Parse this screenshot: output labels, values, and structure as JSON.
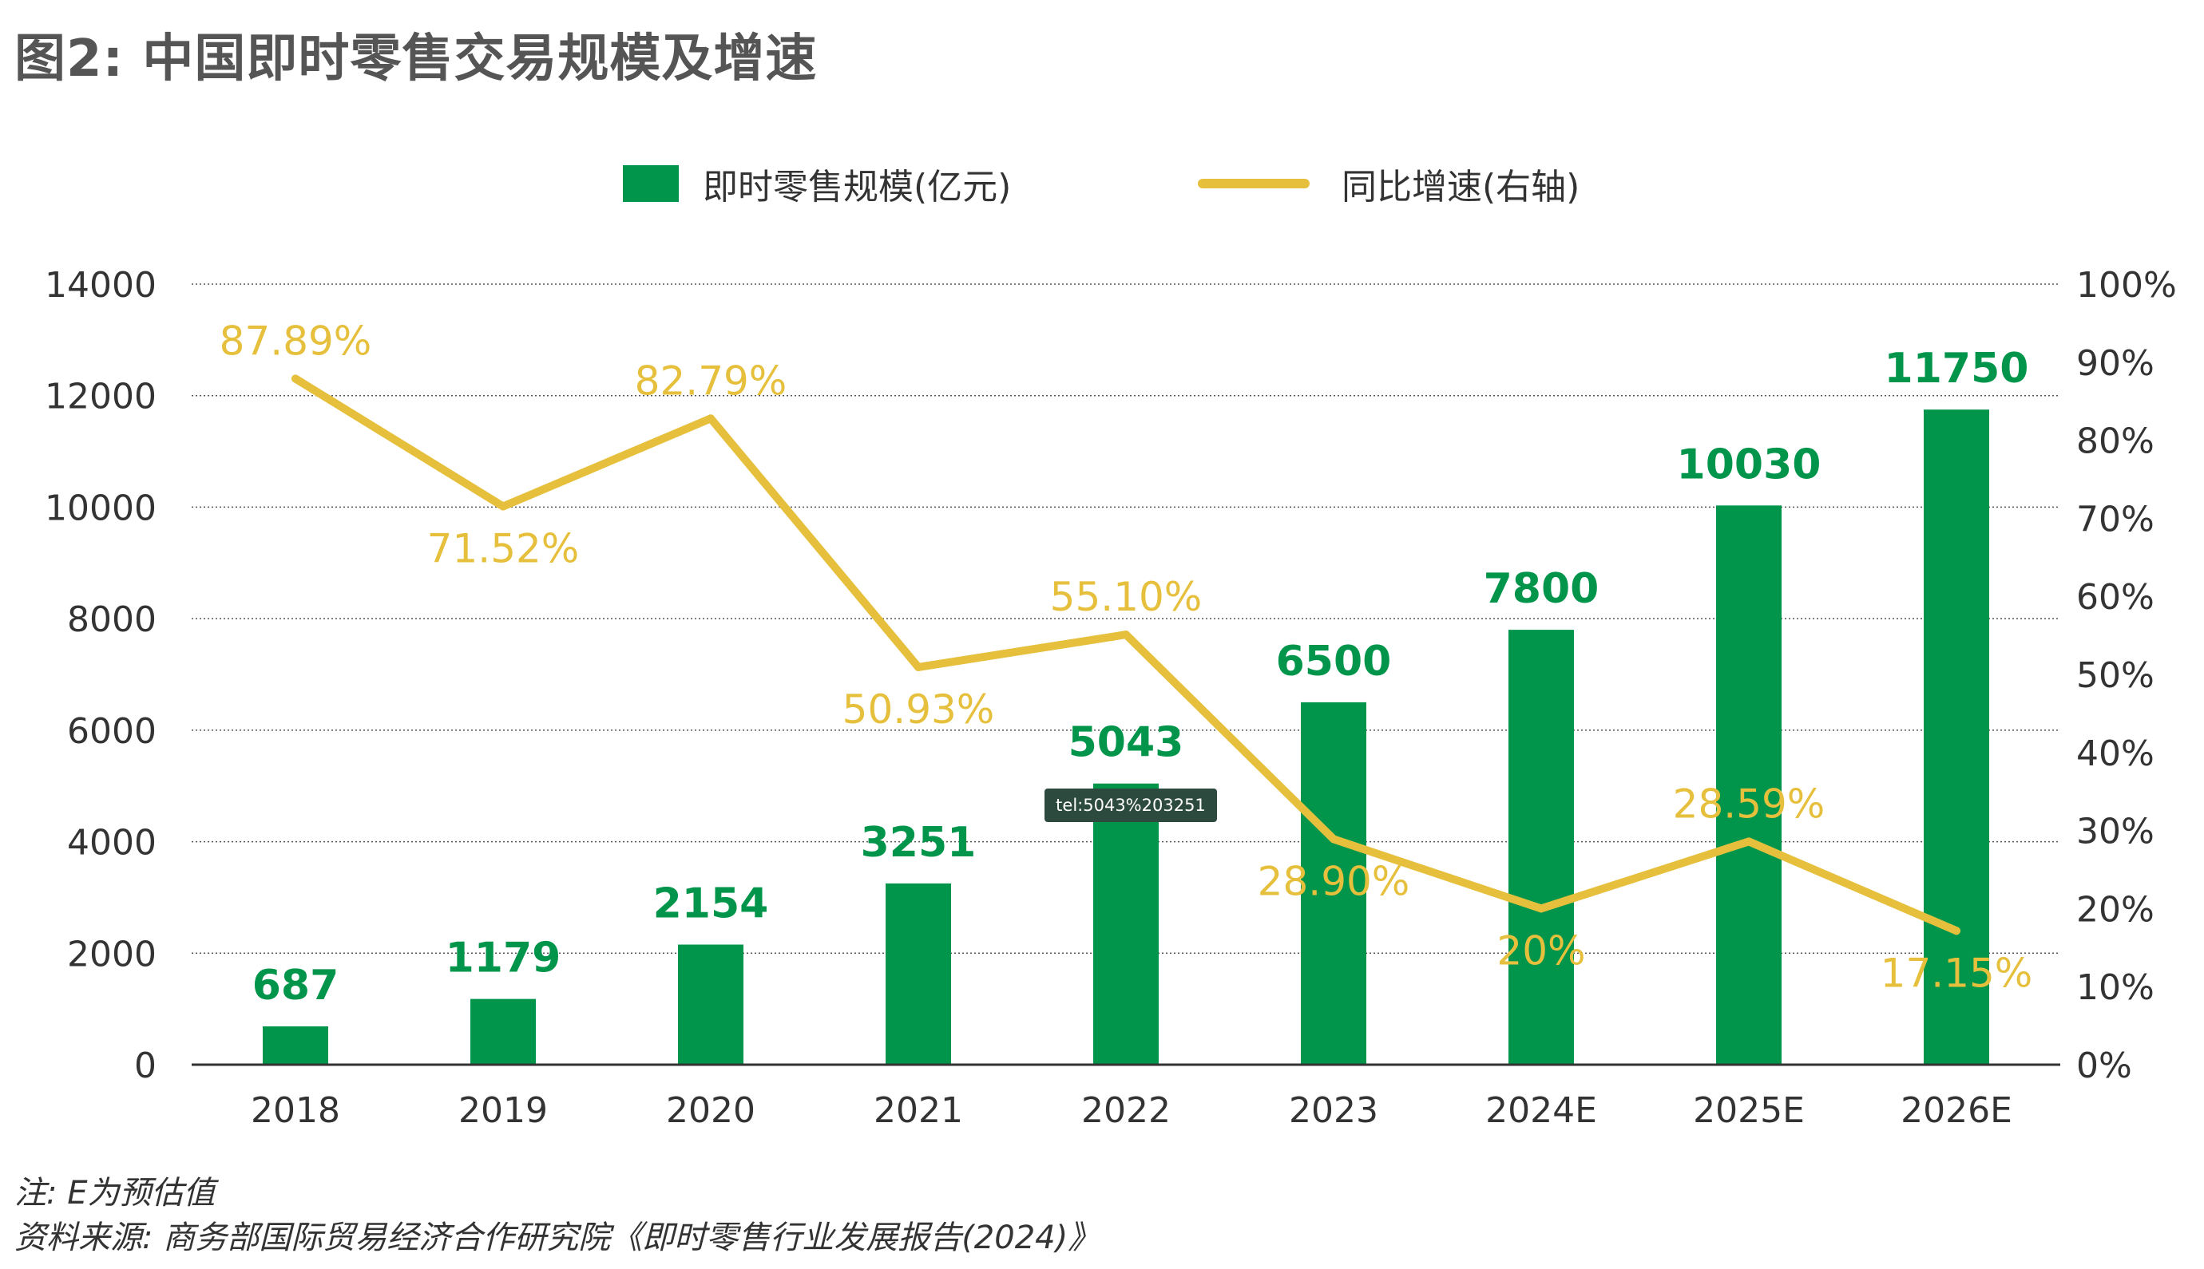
{
  "title": "图2: 中国即时零售交易规模及增速",
  "colors": {
    "bar": "#00954a",
    "line": "#e6c03c",
    "grid": "#555555",
    "axis": "#333333"
  },
  "legend": {
    "bar_label": "即时零售规模(亿元)",
    "line_label": "同比增速(右轴)"
  },
  "tooltip": {
    "text": "tel:5043%203251"
  },
  "chart_data": {
    "type": "bar",
    "title": "图2: 中国即时零售交易规模及增速",
    "categories": [
      "2018",
      "2019",
      "2020",
      "2021",
      "2022",
      "2023",
      "2024E",
      "2025E",
      "2026E"
    ],
    "series": [
      {
        "name": "即时零售规模(亿元)",
        "type": "bar",
        "axis": "left",
        "values": [
          687,
          1179,
          2154,
          3251,
          5043,
          6500,
          7800,
          10030,
          11750
        ],
        "labels": [
          "687",
          "1179",
          "2154",
          "3251",
          "5043",
          "6500",
          "7800",
          "10030",
          "11750"
        ]
      },
      {
        "name": "同比增速(右轴)",
        "type": "line",
        "axis": "right",
        "values": [
          87.89,
          71.52,
          82.79,
          50.93,
          55.1,
          28.9,
          20,
          28.59,
          17.15
        ],
        "labels": [
          "87.89%",
          "71.52%",
          "82.79%",
          "50.93%",
          "55.10%",
          "28.90%",
          "20%",
          "28.59%",
          "17.15%"
        ],
        "label_position": [
          "above",
          "below",
          "above",
          "below",
          "above",
          "below",
          "below",
          "above",
          "below"
        ]
      }
    ],
    "y_left": {
      "min": 0,
      "max": 14000,
      "ticks": [
        "0",
        "2000",
        "4000",
        "6000",
        "8000",
        "10000",
        "12000",
        "14000"
      ]
    },
    "y_right": {
      "min": 0,
      "max": 100,
      "ticks": [
        "0%",
        "10%",
        "20%",
        "30%",
        "40%",
        "50%",
        "60%",
        "70%",
        "80%",
        "90%",
        "100%"
      ]
    },
    "grid": true,
    "legend_position": "top"
  },
  "notes": [
    "注: E为预估值",
    "资料来源: 商务部国际贸易经济合作研究院《即时零售行业发展报告(2024)》"
  ]
}
